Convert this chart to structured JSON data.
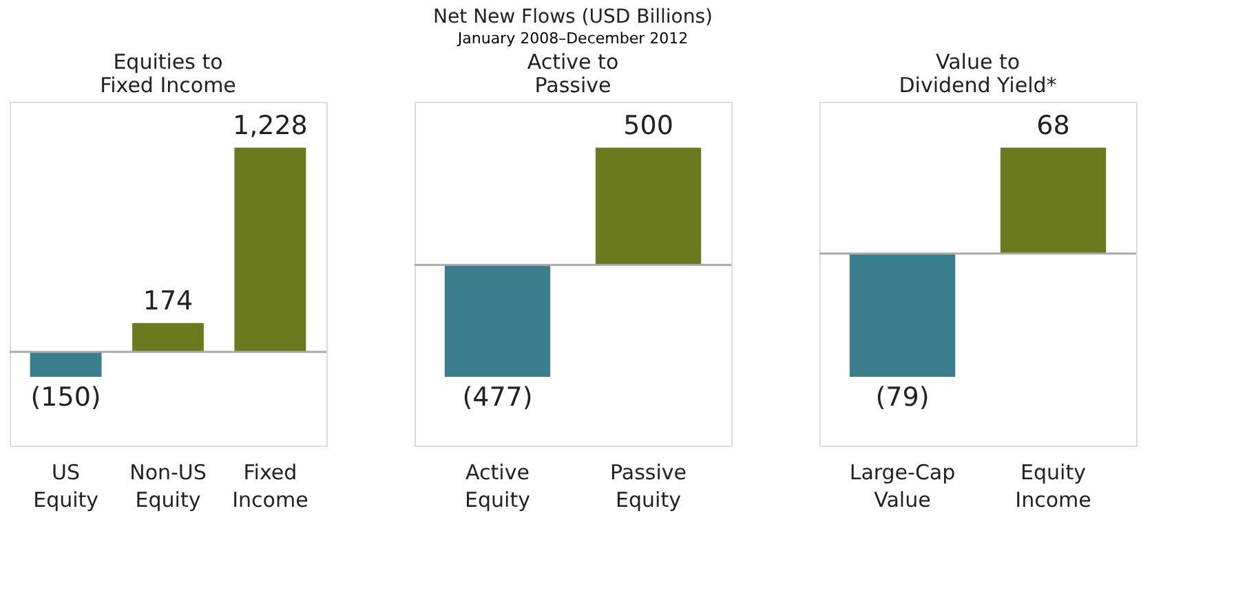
{
  "chart_data": [
    {
      "type": "bar",
      "title": "Equities to Fixed Income",
      "annotations": [
        "Net New Flows (USD Billions)",
        "January 2008–December 2012"
      ],
      "categories": [
        "US Equity",
        "Non-US Equity",
        "Fixed Income"
      ],
      "values": [
        -150,
        174,
        1228
      ],
      "colors": [
        "#3b7f8e",
        "#6b7a1e",
        "#6b7a1e"
      ],
      "value_labels": [
        "(150)",
        "174",
        "1,228"
      ]
    },
    {
      "type": "bar",
      "title": "Active to Passive",
      "categories": [
        "Active Equity",
        "Passive Equity"
      ],
      "values": [
        -477,
        500
      ],
      "colors": [
        "#3b7f8e",
        "#6b7a1e"
      ],
      "value_labels": [
        "(477)",
        "500"
      ]
    },
    {
      "type": "bar",
      "title": "Value to Dividend Yield*",
      "categories": [
        "Large-Cap Value",
        "Equity Income"
      ],
      "values": [
        -79,
        68
      ],
      "colors": [
        "#3b7f8e",
        "#6b7a1e"
      ],
      "value_labels": [
        "(79)",
        "68"
      ]
    }
  ]
}
